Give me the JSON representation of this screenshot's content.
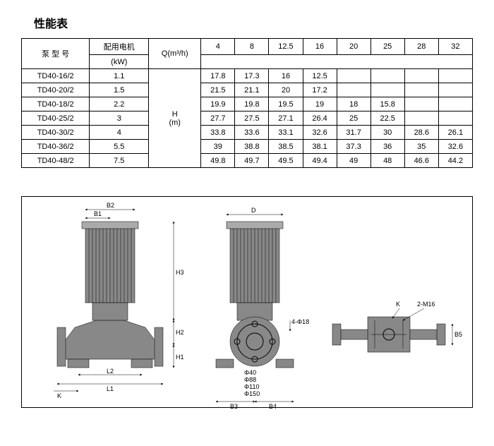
{
  "title": "性能表",
  "table": {
    "headers": {
      "model": "泵 型 号",
      "motor": "配用电机",
      "motor_unit": "(kW)",
      "q": "Q(m³/h)",
      "h": "H",
      "h_unit": "(m)",
      "cols": [
        "4",
        "8",
        "12.5",
        "16",
        "20",
        "25",
        "28",
        "32"
      ]
    },
    "rows": [
      {
        "model": "TD40-16/2",
        "kw": "1.1",
        "vals": [
          "17.8",
          "17.3",
          "16",
          "12.5",
          "",
          "",
          "",
          ""
        ]
      },
      {
        "model": "TD40-20/2",
        "kw": "1.5",
        "vals": [
          "21.5",
          "21.1",
          "20",
          "17.2",
          "",
          "",
          "",
          ""
        ]
      },
      {
        "model": "TD40-18/2",
        "kw": "2.2",
        "vals": [
          "19.9",
          "19.8",
          "19.5",
          "19",
          "18",
          "15.8",
          "",
          ""
        ]
      },
      {
        "model": "TD40-25/2",
        "kw": "3",
        "vals": [
          "27.7",
          "27.5",
          "27.1",
          "26.4",
          "25",
          "22.5",
          "",
          ""
        ]
      },
      {
        "model": "TD40-30/2",
        "kw": "4",
        "vals": [
          "33.8",
          "33.6",
          "33.1",
          "32.6",
          "31.7",
          "30",
          "28.6",
          "26.1"
        ]
      },
      {
        "model": "TD40-36/2",
        "kw": "5.5",
        "vals": [
          "39",
          "38.8",
          "38.5",
          "38.1",
          "37.3",
          "36",
          "35",
          "32.6"
        ]
      },
      {
        "model": "TD40-48/2",
        "kw": "7.5",
        "vals": [
          "49.8",
          "49.7",
          "49.5",
          "49.4",
          "49",
          "48",
          "46.6",
          "44.2"
        ]
      }
    ]
  },
  "diagram": {
    "labels": {
      "B1": "B1",
      "B2": "B2",
      "D": "D",
      "H1": "H1",
      "H2": "H2",
      "H3": "H3",
      "L1": "L1",
      "L2": "L2",
      "K": "K",
      "B3": "B3",
      "B4": "B4",
      "B5": "B5",
      "K2": "K",
      "M16": "2-M16",
      "d40": "Φ40",
      "d88": "Φ88",
      "d110": "Φ110",
      "d150": "Φ150",
      "d18": "4-Φ18"
    }
  }
}
